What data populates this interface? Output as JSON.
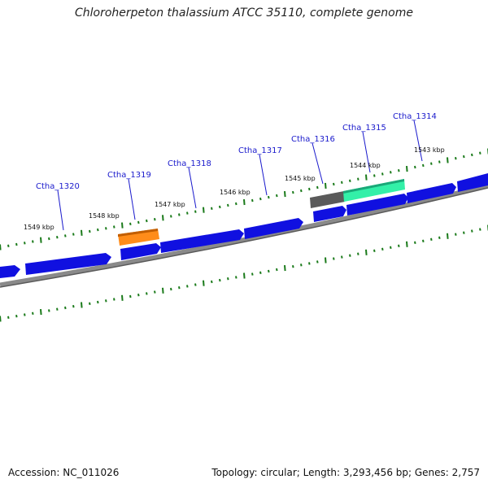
{
  "title": "Chloroherpeton thalassium ATCC 35110, complete genome",
  "footer": {
    "accession": "Accession: NC_011026",
    "info": "Topology: circular; Length: 3,293,456 bp; Genes: 2,757"
  },
  "ticks": [
    "1549 kbp",
    "1548 kbp",
    "1547 kbp",
    "1546 kbp",
    "1545 kbp",
    "1544 kbp",
    "1543 kbp"
  ],
  "genes": [
    {
      "label": "Ctha_1320"
    },
    {
      "label": "Ctha_1319"
    },
    {
      "label": "Ctha_1318"
    },
    {
      "label": "Ctha_1317"
    },
    {
      "label": "Ctha_1316"
    },
    {
      "label": "Ctha_1315"
    },
    {
      "label": "Ctha_1314"
    }
  ],
  "colors": {
    "gene": "#1010e0",
    "highlight_orange": "#ff8c1a",
    "highlight_teal": "#33f0a8",
    "backbone": "#808080",
    "ticks": "#1a7a1a",
    "label": "#1a1acc"
  }
}
